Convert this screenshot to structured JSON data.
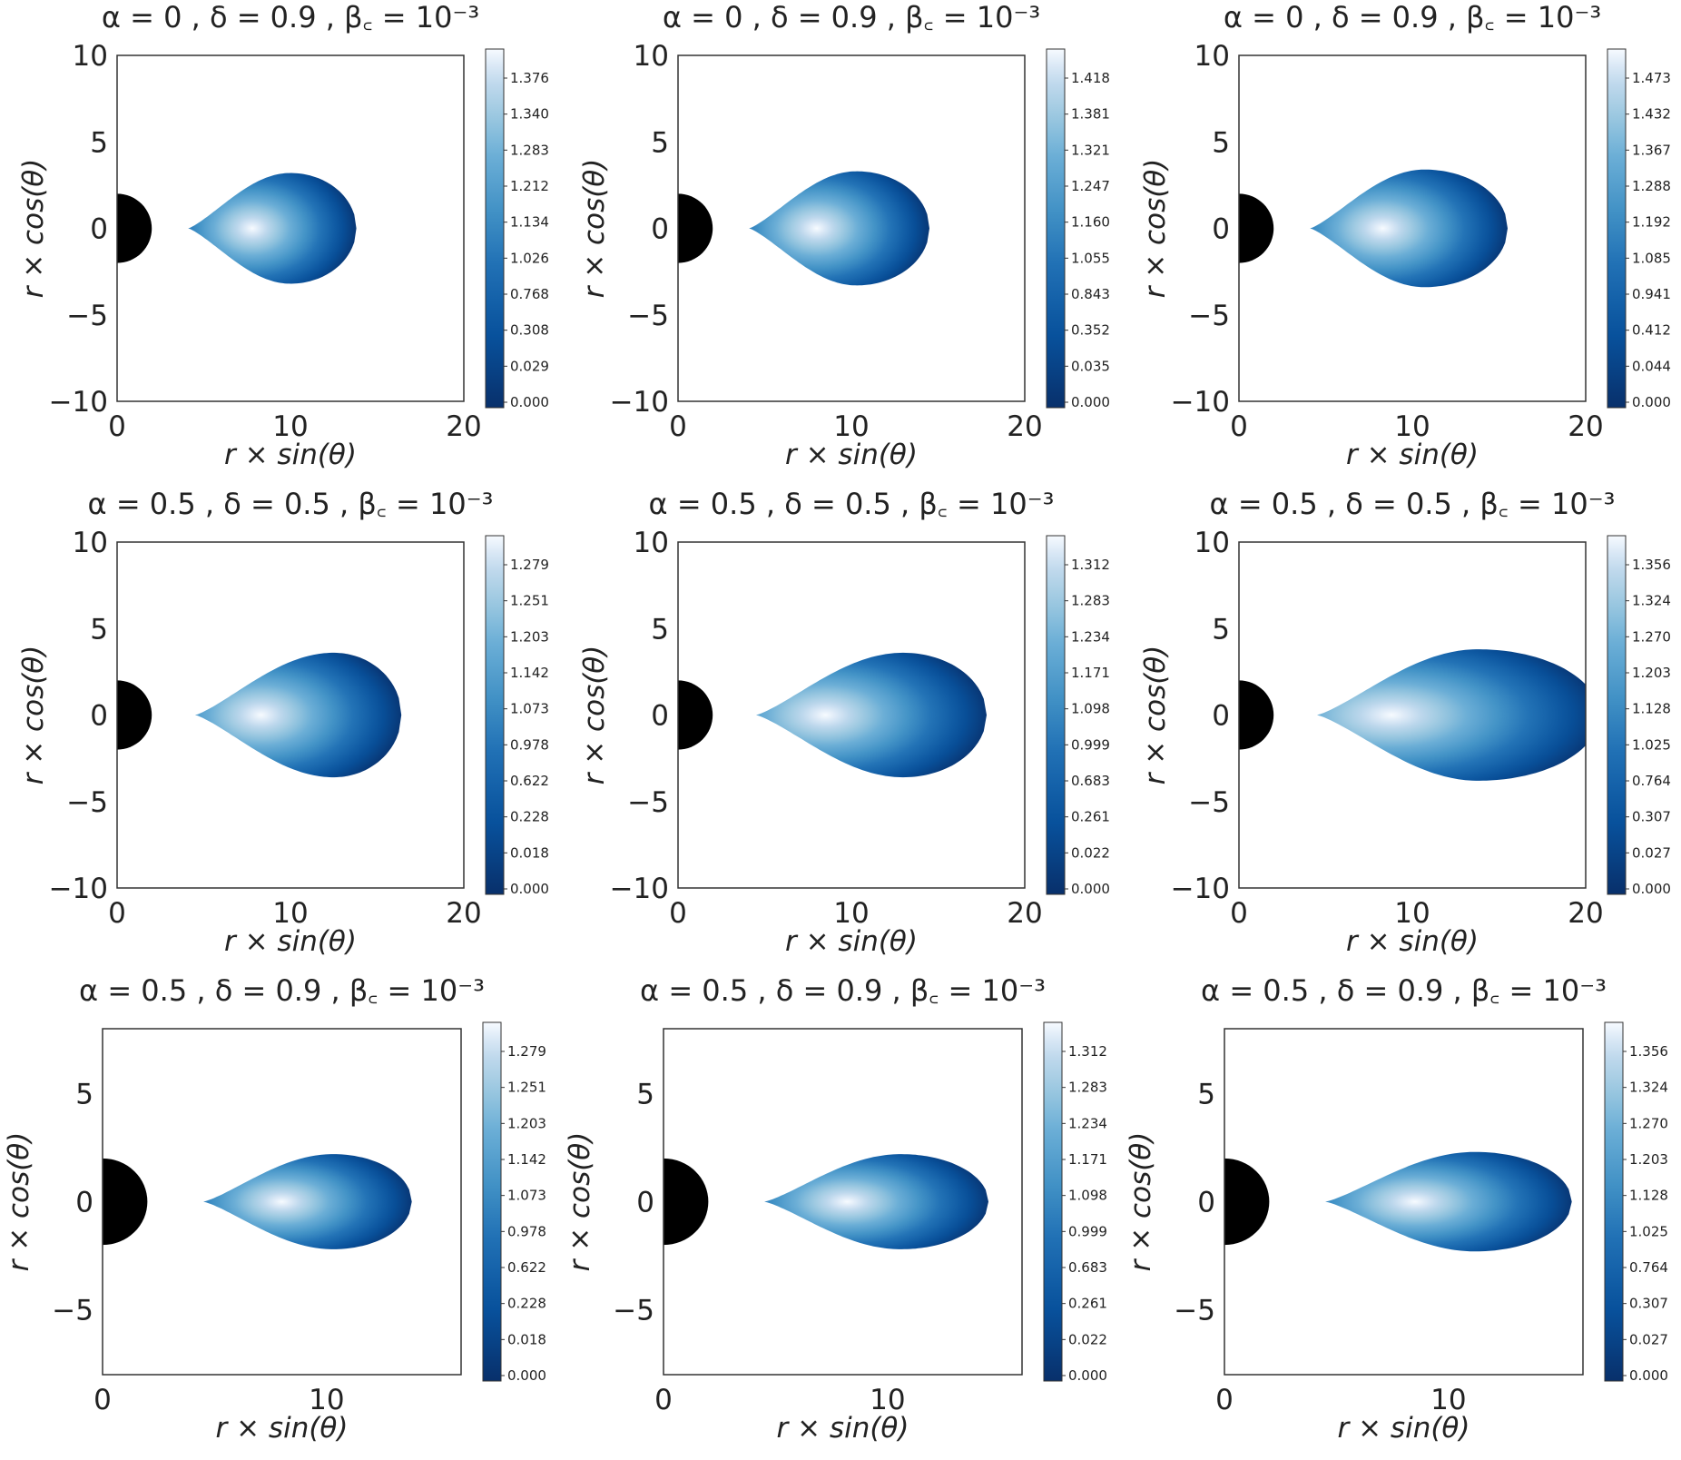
{
  "figure": {
    "panels": [
      {
        "title": "α = 0 , δ = 0.9 , β꜀ = 10⁻³"
      },
      {
        "title": "α = 0 , δ = 0.9 , β꜀ = 10⁻³"
      },
      {
        "title": "α = 0 , δ = 0.9 , β꜀ = 10⁻³"
      },
      {
        "title": "α = 0.5 , δ = 0.5 , β꜀ = 10⁻³"
      },
      {
        "title": "α = 0.5 , δ = 0.5 , β꜀ = 10⁻³"
      },
      {
        "title": "α = 0.5 , δ = 0.5 , β꜀ = 10⁻³"
      },
      {
        "title": "α = 0.5 , δ = 0.9 , β꜀ = 10⁻³"
      },
      {
        "title": "α = 0.5 , δ = 0.9 , β꜀ = 10⁻³"
      },
      {
        "title": "α = 0.5 , δ = 0.9 , β꜀ = 10⁻³"
      }
    ]
  },
  "chart_data": [
    {
      "type": "heatmap",
      "title": "α = 0 , δ = 0.9 , β꜀ = 10⁻³",
      "xlabel": "r × sin(θ)",
      "ylabel": "r × cos(θ)",
      "xlim": [
        0,
        20
      ],
      "ylim": [
        -10,
        10
      ],
      "xticks": [
        0,
        10,
        20
      ],
      "yticks": [
        -10,
        -5,
        0,
        5,
        10
      ],
      "xtick_labels": [
        "0",
        "10",
        "20"
      ],
      "ytick_labels": [
        "−10",
        "−5",
        "0",
        "5",
        "10"
      ],
      "black_hole_radius": 2,
      "torus": {
        "inner_edge": 4.1,
        "outer_edge": 13.8,
        "center": 7.8,
        "half_height": 3.2,
        "peak_x": 10.0
      },
      "colormap": "Blues_r",
      "colorbar_ticks": [
        0.0,
        0.029,
        0.308,
        0.768,
        1.026,
        1.134,
        1.212,
        1.283,
        1.34,
        1.376
      ],
      "colorbar_labels": [
        "0.000",
        "0.029",
        "0.308",
        "0.768",
        "1.026",
        "1.134",
        "1.212",
        "1.283",
        "1.340",
        "1.376"
      ]
    },
    {
      "type": "heatmap",
      "title": "α = 0 , δ = 0.9 , β꜀ = 10⁻³",
      "xlabel": "r × sin(θ)",
      "ylabel": "r × cos(θ)",
      "xlim": [
        0,
        20
      ],
      "ylim": [
        -10,
        10
      ],
      "xticks": [
        0,
        10,
        20
      ],
      "yticks": [
        -10,
        -5,
        0,
        5,
        10
      ],
      "xtick_labels": [
        "0",
        "10",
        "20"
      ],
      "ytick_labels": [
        "−10",
        "−5",
        "0",
        "5",
        "10"
      ],
      "black_hole_radius": 2,
      "torus": {
        "inner_edge": 4.1,
        "outer_edge": 14.5,
        "center": 8.0,
        "half_height": 3.3,
        "peak_x": 10.3
      },
      "colormap": "Blues_r",
      "colorbar_ticks": [
        0.0,
        0.035,
        0.352,
        0.843,
        1.055,
        1.16,
        1.247,
        1.321,
        1.381,
        1.418
      ],
      "colorbar_labels": [
        "0.000",
        "0.035",
        "0.352",
        "0.843",
        "1.055",
        "1.160",
        "1.247",
        "1.321",
        "1.381",
        "1.418"
      ]
    },
    {
      "type": "heatmap",
      "title": "α = 0 , δ = 0.9 , β꜀ = 10⁻³",
      "xlabel": "r × sin(θ)",
      "ylabel": "r × cos(θ)",
      "xlim": [
        0,
        20
      ],
      "ylim": [
        -10,
        10
      ],
      "xticks": [
        0,
        10,
        20
      ],
      "yticks": [
        -10,
        -5,
        0,
        5,
        10
      ],
      "xtick_labels": [
        "0",
        "10",
        "20"
      ],
      "ytick_labels": [
        "−10",
        "−5",
        "0",
        "5",
        "10"
      ],
      "black_hole_radius": 2,
      "torus": {
        "inner_edge": 4.1,
        "outer_edge": 15.5,
        "center": 8.3,
        "half_height": 3.4,
        "peak_x": 10.7
      },
      "colormap": "Blues_r",
      "colorbar_ticks": [
        0.0,
        0.044,
        0.412,
        0.941,
        1.085,
        1.192,
        1.288,
        1.367,
        1.432,
        1.473
      ],
      "colorbar_labels": [
        "0.000",
        "0.044",
        "0.412",
        "0.941",
        "1.085",
        "1.192",
        "1.288",
        "1.367",
        "1.432",
        "1.473"
      ]
    },
    {
      "type": "heatmap",
      "title": "α = 0.5 , δ = 0.5 , β꜀ = 10⁻³",
      "xlabel": "r × sin(θ)",
      "ylabel": "r × cos(θ)",
      "xlim": [
        0,
        20
      ],
      "ylim": [
        -10,
        10
      ],
      "xticks": [
        0,
        10,
        20
      ],
      "yticks": [
        -10,
        -5,
        0,
        5,
        10
      ],
      "xtick_labels": [
        "0",
        "10",
        "20"
      ],
      "ytick_labels": [
        "−10",
        "−5",
        "0",
        "5",
        "10"
      ],
      "black_hole_radius": 2,
      "torus": {
        "inner_edge": 4.5,
        "outer_edge": 16.4,
        "center": 8.3,
        "half_height": 3.6,
        "peak_x": 12.5
      },
      "colormap": "Blues_r",
      "colorbar_ticks": [
        0.0,
        0.018,
        0.228,
        0.622,
        0.978,
        1.073,
        1.142,
        1.203,
        1.251,
        1.279
      ],
      "colorbar_labels": [
        "0.000",
        "0.018",
        "0.228",
        "0.622",
        "0.978",
        "1.073",
        "1.142",
        "1.203",
        "1.251",
        "1.279"
      ]
    },
    {
      "type": "heatmap",
      "title": "α = 0.5 , δ = 0.5 , β꜀ = 10⁻³",
      "xlabel": "r × sin(θ)",
      "ylabel": "r × cos(θ)",
      "xlim": [
        0,
        20
      ],
      "ylim": [
        -10,
        10
      ],
      "xticks": [
        0,
        10,
        20
      ],
      "yticks": [
        -10,
        -5,
        0,
        5,
        10
      ],
      "xtick_labels": [
        "0",
        "10",
        "20"
      ],
      "ytick_labels": [
        "−10",
        "−5",
        "0",
        "5",
        "10"
      ],
      "black_hole_radius": 2,
      "torus": {
        "inner_edge": 4.5,
        "outer_edge": 17.8,
        "center": 8.5,
        "half_height": 3.6,
        "peak_x": 13.0
      },
      "colormap": "Blues_r",
      "colorbar_ticks": [
        0.0,
        0.022,
        0.261,
        0.683,
        0.999,
        1.098,
        1.171,
        1.234,
        1.283,
        1.312
      ],
      "colorbar_labels": [
        "0.000",
        "0.022",
        "0.261",
        "0.683",
        "0.999",
        "1.098",
        "1.171",
        "1.234",
        "1.283",
        "1.312"
      ]
    },
    {
      "type": "heatmap",
      "title": "α = 0.5 , δ = 0.5 , β꜀ = 10⁻³",
      "xlabel": "r × sin(θ)",
      "ylabel": "r × cos(θ)",
      "xlim": [
        0,
        20
      ],
      "ylim": [
        -10,
        10
      ],
      "xticks": [
        0,
        10,
        20
      ],
      "yticks": [
        -10,
        -5,
        0,
        5,
        10
      ],
      "xtick_labels": [
        "0",
        "10",
        "20"
      ],
      "ytick_labels": [
        "−10",
        "−5",
        "0",
        "5",
        "10"
      ],
      "black_hole_radius": 2,
      "torus": {
        "inner_edge": 4.5,
        "outer_edge": 20.8,
        "center": 8.8,
        "half_height": 3.8,
        "peak_x": 13.8
      },
      "colormap": "Blues_r",
      "colorbar_ticks": [
        0.0,
        0.027,
        0.307,
        0.764,
        1.025,
        1.128,
        1.203,
        1.27,
        1.324,
        1.356
      ],
      "colorbar_labels": [
        "0.000",
        "0.027",
        "0.307",
        "0.764",
        "1.025",
        "1.128",
        "1.203",
        "1.270",
        "1.324",
        "1.356"
      ]
    },
    {
      "type": "heatmap",
      "title": "α = 0.5 , δ = 0.9 , β꜀ = 10⁻³",
      "xlabel": "r × sin(θ)",
      "ylabel": "r × cos(θ)",
      "xlim": [
        0,
        16
      ],
      "ylim": [
        -8,
        8
      ],
      "xticks": [
        0,
        10
      ],
      "yticks": [
        -5,
        0,
        5
      ],
      "xtick_labels": [
        "0",
        "10"
      ],
      "ytick_labels": [
        "−5",
        "0",
        "5"
      ],
      "black_hole_radius": 2,
      "torus": {
        "inner_edge": 4.5,
        "outer_edge": 13.8,
        "center": 8.0,
        "half_height": 2.2,
        "peak_x": 10.3
      },
      "colormap": "Blues_r",
      "colorbar_ticks": [
        0.0,
        0.018,
        0.228,
        0.622,
        0.978,
        1.073,
        1.142,
        1.203,
        1.251,
        1.279
      ],
      "colorbar_labels": [
        "0.000",
        "0.018",
        "0.228",
        "0.622",
        "0.978",
        "1.073",
        "1.142",
        "1.203",
        "1.251",
        "1.279"
      ]
    },
    {
      "type": "heatmap",
      "title": "α = 0.5 , δ = 0.9 , β꜀ = 10⁻³",
      "xlabel": "r × sin(θ)",
      "ylabel": "r × cos(θ)",
      "xlim": [
        0,
        16
      ],
      "ylim": [
        -8,
        8
      ],
      "xticks": [
        0,
        10
      ],
      "yticks": [
        -5,
        0,
        5
      ],
      "xtick_labels": [
        "0",
        "10"
      ],
      "ytick_labels": [
        "−5",
        "0",
        "5"
      ],
      "black_hole_radius": 2,
      "torus": {
        "inner_edge": 4.5,
        "outer_edge": 14.5,
        "center": 8.2,
        "half_height": 2.2,
        "peak_x": 10.6
      },
      "colormap": "Blues_r",
      "colorbar_ticks": [
        0.0,
        0.022,
        0.261,
        0.683,
        0.999,
        1.098,
        1.171,
        1.234,
        1.283,
        1.312
      ],
      "colorbar_labels": [
        "0.000",
        "0.022",
        "0.261",
        "0.683",
        "0.999",
        "1.098",
        "1.171",
        "1.234",
        "1.283",
        "1.312"
      ]
    },
    {
      "type": "heatmap",
      "title": "α = 0.5 , δ = 0.9 , β꜀ = 10⁻³",
      "xlabel": "r × sin(θ)",
      "ylabel": "r × cos(θ)",
      "xlim": [
        0,
        16
      ],
      "ylim": [
        -8,
        8
      ],
      "xticks": [
        0,
        10
      ],
      "yticks": [
        -5,
        0,
        5
      ],
      "xtick_labels": [
        "0",
        "10"
      ],
      "ytick_labels": [
        "−5",
        "0",
        "5"
      ],
      "black_hole_radius": 2,
      "torus": {
        "inner_edge": 4.5,
        "outer_edge": 15.5,
        "center": 8.5,
        "half_height": 2.3,
        "peak_x": 11.2
      },
      "colormap": "Blues_r",
      "colorbar_ticks": [
        0.0,
        0.027,
        0.307,
        0.764,
        1.025,
        1.128,
        1.203,
        1.27,
        1.324,
        1.356
      ],
      "colorbar_labels": [
        "0.000",
        "0.027",
        "0.307",
        "0.764",
        "1.025",
        "1.128",
        "1.203",
        "1.270",
        "1.324",
        "1.356"
      ]
    }
  ]
}
